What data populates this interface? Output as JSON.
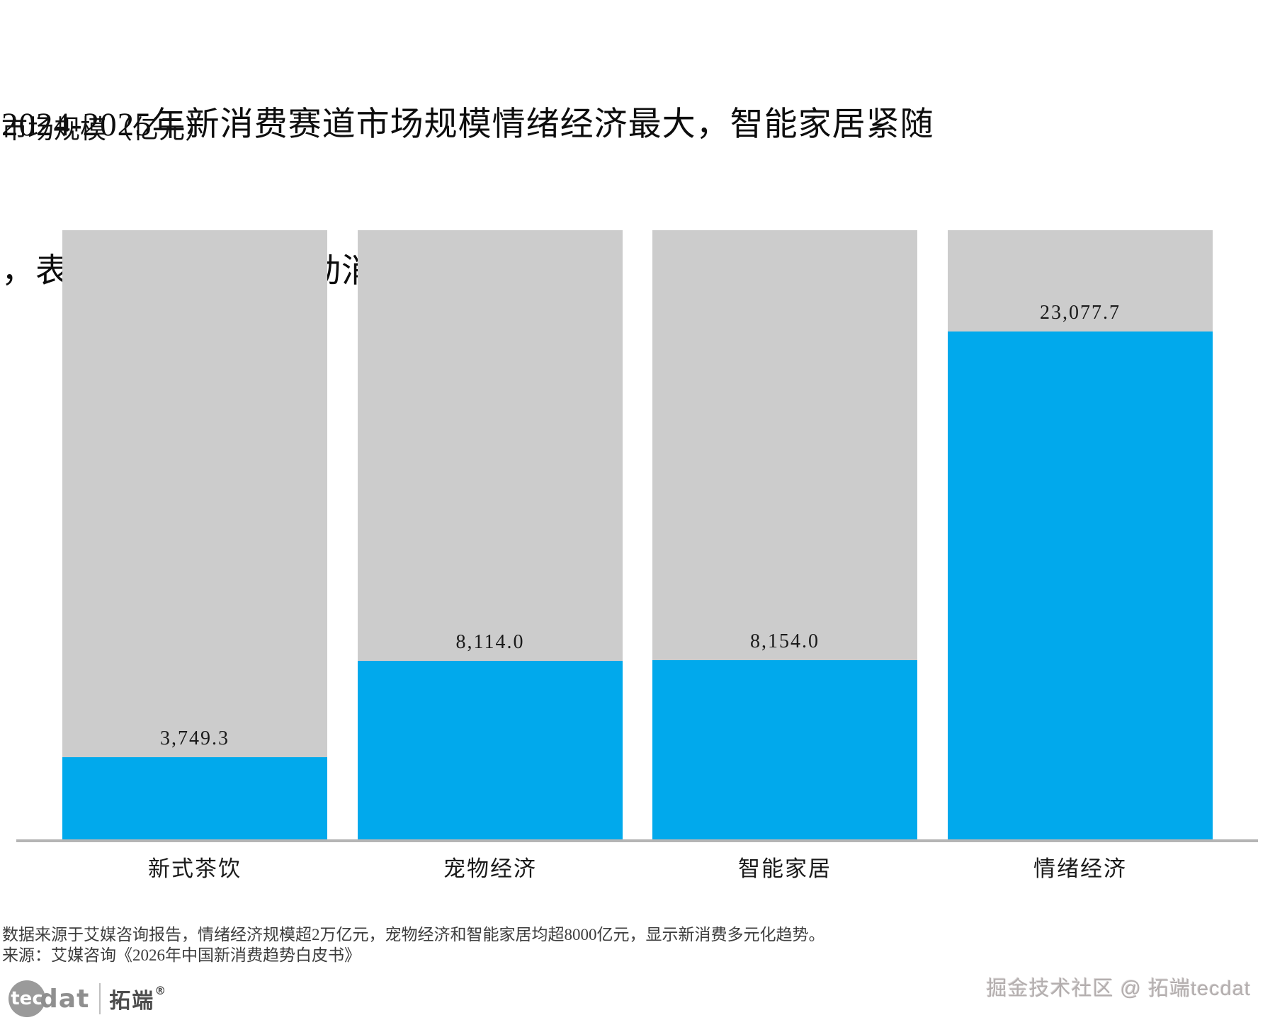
{
  "header": {
    "title_line1": "2024-2025年新消费赛道市场规模情绪经济最大，智能家居紧随",
    "title_line2": "，表明健康与科技驱动消费升级。",
    "y_axis_label": "市场规模（亿元）"
  },
  "chart_data": {
    "type": "bar",
    "title": "2024-2025年新消费赛道市场规模情绪经济最大，智能家居紧随，表明健康与科技驱动消费升级。",
    "categories": [
      "新式茶饮",
      "宠物经济",
      "智能家居",
      "情绪经济"
    ],
    "values": [
      3749.3,
      8114.0,
      8154.0,
      23077.7
    ],
    "value_labels": [
      "3,749.3",
      "8,114.0",
      "8,154.0",
      "23,077.7"
    ],
    "xlabel": "",
    "ylabel": "市场规模（亿元）",
    "ylim": [
      0,
      27693
    ],
    "grid": false,
    "legend_position": "none",
    "background_tracks_full_height": true,
    "colors": {
      "bar": "#01a9ec",
      "track": "#cccccc",
      "axis_line": "#b5b5b5"
    }
  },
  "footnote": {
    "line1": "数据来源于艾媒咨询报告，情绪经济规模超2万亿元，宠物经济和智能家居均超8000亿元，显示新消费多元化趋势。",
    "line2": "来源：艾媒咨询《2026年中国新消费趋势白皮书》"
  },
  "branding": {
    "logo_tec": "tec",
    "logo_dat": "dat",
    "logo_cn": "拓端",
    "logo_reg": "®",
    "watermark": "掘金技术社区 @ 拓端tecdat"
  }
}
